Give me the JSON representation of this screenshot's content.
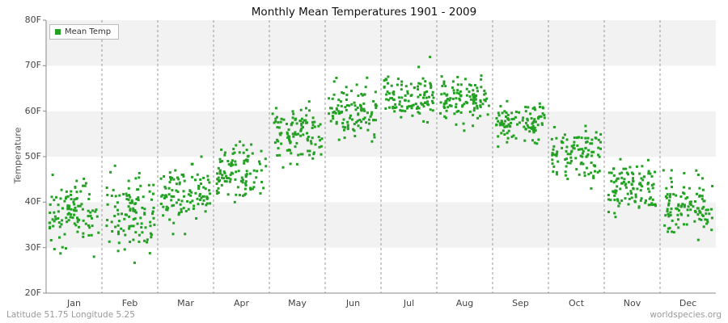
{
  "title": "Monthly Mean Temperatures 1901 - 2009",
  "legend": {
    "label": "Mean Temp",
    "marker_color": "#22a122"
  },
  "y_axis": {
    "label": "Temperature",
    "ticks": [
      {
        "label": "80F",
        "value": 80
      },
      {
        "label": "70F",
        "value": 70
      },
      {
        "label": "60F",
        "value": 60
      },
      {
        "label": "50F",
        "value": 50
      },
      {
        "label": "40F",
        "value": 40
      },
      {
        "label": "30F",
        "value": 30
      },
      {
        "label": "20F",
        "value": 20
      }
    ]
  },
  "x_axis": {
    "months": [
      "Jan",
      "Feb",
      "Mar",
      "Apr",
      "May",
      "Jun",
      "Jul",
      "Aug",
      "Sep",
      "Oct",
      "Nov",
      "Dec"
    ]
  },
  "footer": {
    "left": "Latitude 51.75 Longitude 5.25",
    "right": "worldspecies.org"
  },
  "colors": {
    "band_gray": "#f2f2f2",
    "band_white": "#ffffff",
    "gridline": "#999999",
    "axis": "#888888",
    "point": "#22a122"
  },
  "chart_data": {
    "type": "scatter",
    "title": "Monthly Mean Temperatures 1901 - 2009",
    "xlabel": "",
    "ylabel": "Temperature",
    "ylim": [
      20,
      80
    ],
    "legend_position": "top-left",
    "grid": "vertical-dashed-month-boundaries",
    "categories": [
      "Jan",
      "Feb",
      "Mar",
      "Apr",
      "May",
      "Jun",
      "Jul",
      "Aug",
      "Sep",
      "Oct",
      "Nov",
      "Dec"
    ],
    "points_per_month": 109,
    "series": [
      {
        "name": "Mean Temp",
        "monthly_stats": [
          {
            "month": "Jan",
            "mean": 37.5,
            "sd": 3.5,
            "min": 28,
            "max": 46
          },
          {
            "month": "Feb",
            "mean": 37.5,
            "sd": 4.5,
            "min": 22,
            "max": 48
          },
          {
            "month": "Mar",
            "mean": 42.0,
            "sd": 3.2,
            "min": 33,
            "max": 50
          },
          {
            "month": "Apr",
            "mean": 46.5,
            "sd": 2.8,
            "min": 40,
            "max": 53.5
          },
          {
            "month": "May",
            "mean": 55.0,
            "sd": 3.0,
            "min": 47,
            "max": 63
          },
          {
            "month": "Jun",
            "mean": 60.0,
            "sd": 2.8,
            "min": 53,
            "max": 68
          },
          {
            "month": "Jul",
            "mean": 63.0,
            "sd": 2.8,
            "min": 55,
            "max": 72
          },
          {
            "month": "Aug",
            "mean": 62.5,
            "sd": 2.5,
            "min": 55,
            "max": 69
          },
          {
            "month": "Sep",
            "mean": 57.5,
            "sd": 2.5,
            "min": 51,
            "max": 64
          },
          {
            "month": "Oct",
            "mean": 50.5,
            "sd": 2.5,
            "min": 43,
            "max": 58
          },
          {
            "month": "Nov",
            "mean": 43.5,
            "sd": 3.0,
            "min": 34,
            "max": 50
          },
          {
            "month": "Dec",
            "mean": 39.5,
            "sd": 3.5,
            "min": 29,
            "max": 47
          }
        ]
      }
    ]
  }
}
